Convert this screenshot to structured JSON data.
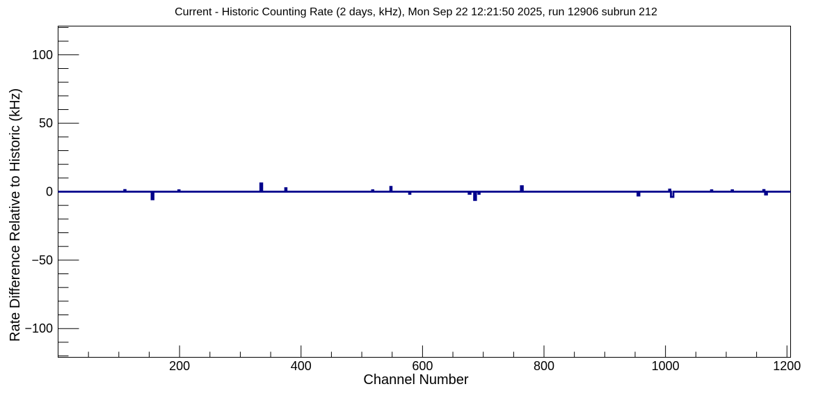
{
  "window": {
    "background": "#ffffff"
  },
  "chart_data": {
    "type": "line",
    "subtype": "histogram-step",
    "title": "Current - Historic Counting Rate (2 days, kHz), Mon Sep 22 12:21:50 2025, run 12906 subrun 212",
    "xlabel": "Channel Number",
    "ylabel": "Rate Difference Relative to Historic (kHz)",
    "xlim": [
      0,
      1206
    ],
    "ylim": [
      -121,
      121
    ],
    "grid": false,
    "legend_position": "none",
    "xticks_major": [
      200,
      400,
      600,
      800,
      1000,
      1200
    ],
    "xtick_labels": [
      "200",
      "400",
      "600",
      "800",
      "1000",
      "1200"
    ],
    "xtick_minor_step": 50,
    "yticks_major": [
      -100,
      -50,
      0,
      50,
      100
    ],
    "ytick_labels": [
      "−100",
      "−50",
      "0",
      "50",
      "100"
    ],
    "ytick_minor_step": 10,
    "frame_color": "#000000",
    "tick_color": "#000000",
    "series": [
      {
        "name": "current-minus-historic-rate",
        "color": "#00008b",
        "baseline": 0,
        "spikes": [
          {
            "channel": 109,
            "value": 1.2,
            "width": 2
          },
          {
            "channel": 154,
            "value": -5.5,
            "width": 3
          },
          {
            "channel": 198,
            "value": 1.0,
            "width": 2
          },
          {
            "channel": 333,
            "value": 6.0,
            "width": 3
          },
          {
            "channel": 374,
            "value": 2.5,
            "width": 2
          },
          {
            "channel": 517,
            "value": 1.0,
            "width": 2
          },
          {
            "channel": 547,
            "value": 3.5,
            "width": 2
          },
          {
            "channel": 578,
            "value": -1.5,
            "width": 2
          },
          {
            "channel": 676,
            "value": -1.5,
            "width": 3
          },
          {
            "channel": 685,
            "value": -6.0,
            "width": 3
          },
          {
            "channel": 692,
            "value": -1.5,
            "width": 2
          },
          {
            "channel": 762,
            "value": 4.0,
            "width": 3
          },
          {
            "channel": 954,
            "value": -2.8,
            "width": 3
          },
          {
            "channel": 1006,
            "value": 1.5,
            "width": 2
          },
          {
            "channel": 1009,
            "value": -3.8,
            "width": 4
          },
          {
            "channel": 1075,
            "value": 1.0,
            "width": 2
          },
          {
            "channel": 1109,
            "value": 1.0,
            "width": 2
          },
          {
            "channel": 1161,
            "value": 1.2,
            "width": 2
          },
          {
            "channel": 1164,
            "value": -2.0,
            "width": 3
          }
        ]
      }
    ]
  }
}
